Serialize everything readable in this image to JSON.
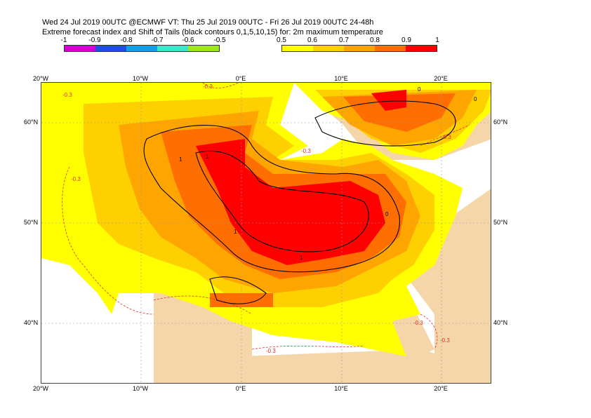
{
  "header": {
    "title_line1": "Wed 24 Jul 2019 00UTC @ECMWF VT: Thu 25 Jul 2019 00UTC - Fri 26 Jul 2019 00UTC  24-48h",
    "title_line2": "Extreme forecast index and Shift of Tails (black contours 0,1,5,10,15) for: 2m maximum temperature"
  },
  "legend_negative": {
    "labels": [
      "-1",
      "-0.9",
      "-0.8",
      "-0.7",
      "-0.6",
      "-0.5"
    ],
    "colors": [
      "#d400d4",
      "#1f4fe0",
      "#14a0e6",
      "#3ce6c8",
      "#9ee61e"
    ]
  },
  "legend_positive": {
    "labels": [
      "0.5",
      "0.6",
      "0.7",
      "0.8",
      "0.9",
      "1"
    ],
    "colors": [
      "#ffff00",
      "#ffd000",
      "#ffa500",
      "#ff6e00",
      "#ff0000"
    ]
  },
  "axes": {
    "lon_ticks": [
      "20°W",
      "10°W",
      "0°E",
      "10°E",
      "20°E"
    ],
    "lat_ticks": [
      "60°N",
      "50°N",
      "40°N"
    ]
  },
  "map": {
    "colors": {
      "land": "#f5d6a8",
      "sea": "#ffffff",
      "efi_05": "#ffff00",
      "efi_06": "#ffd000",
      "efi_07": "#ffa500",
      "efi_08": "#ff6e00",
      "efi_09": "#ff0000",
      "sot_contour": "#000000",
      "dashed_contour": "#e03030",
      "grid": "#8899bb"
    },
    "dashed_labels": [
      "-0.3",
      "-0.3",
      "-0.3",
      "-0.3",
      "-0.3",
      "-0.3",
      "-0.3",
      "-0.3"
    ],
    "sot_labels": [
      "1",
      "1",
      "1",
      "1",
      "0",
      "0",
      "0"
    ]
  }
}
